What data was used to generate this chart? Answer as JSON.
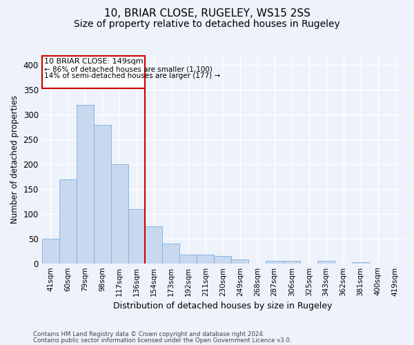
{
  "title_line1": "10, BRIAR CLOSE, RUGELEY, WS15 2SS",
  "title_line2": "Size of property relative to detached houses in Rugeley",
  "xlabel": "Distribution of detached houses by size in Rugeley",
  "ylabel": "Number of detached properties",
  "footer_line1": "Contains HM Land Registry data © Crown copyright and database right 2024.",
  "footer_line2": "Contains public sector information licensed under the Open Government Licence v3.0.",
  "bins": [
    "41sqm",
    "60sqm",
    "79sqm",
    "98sqm",
    "117sqm",
    "136sqm",
    "154sqm",
    "173sqm",
    "192sqm",
    "211sqm",
    "230sqm",
    "249sqm",
    "268sqm",
    "287sqm",
    "306sqm",
    "325sqm",
    "343sqm",
    "362sqm",
    "381sqm",
    "400sqm",
    "419sqm"
  ],
  "values": [
    50,
    170,
    320,
    280,
    200,
    110,
    75,
    40,
    17,
    17,
    15,
    8,
    0,
    5,
    5,
    0,
    5,
    0,
    3,
    0,
    0
  ],
  "bar_color": "#c8d8ee",
  "bar_edge_color": "#7aafe0",
  "reference_line_bin_index": 6,
  "reference_line_label": "10 BRIAR CLOSE: 149sqm",
  "annotation_line1": "← 86% of detached houses are smaller (1,100)",
  "annotation_line2": "14% of semi-detached houses are larger (177) →",
  "annotation_box_color": "#ffffff",
  "annotation_box_edge": "#cc0000",
  "vline_color": "#cc0000",
  "ylim": [
    0,
    420
  ],
  "yticks": [
    0,
    50,
    100,
    150,
    200,
    250,
    300,
    350,
    400
  ],
  "background_color": "#eef2fa",
  "grid_color": "#ffffff",
  "title_fontsize": 11,
  "subtitle_fontsize": 10
}
